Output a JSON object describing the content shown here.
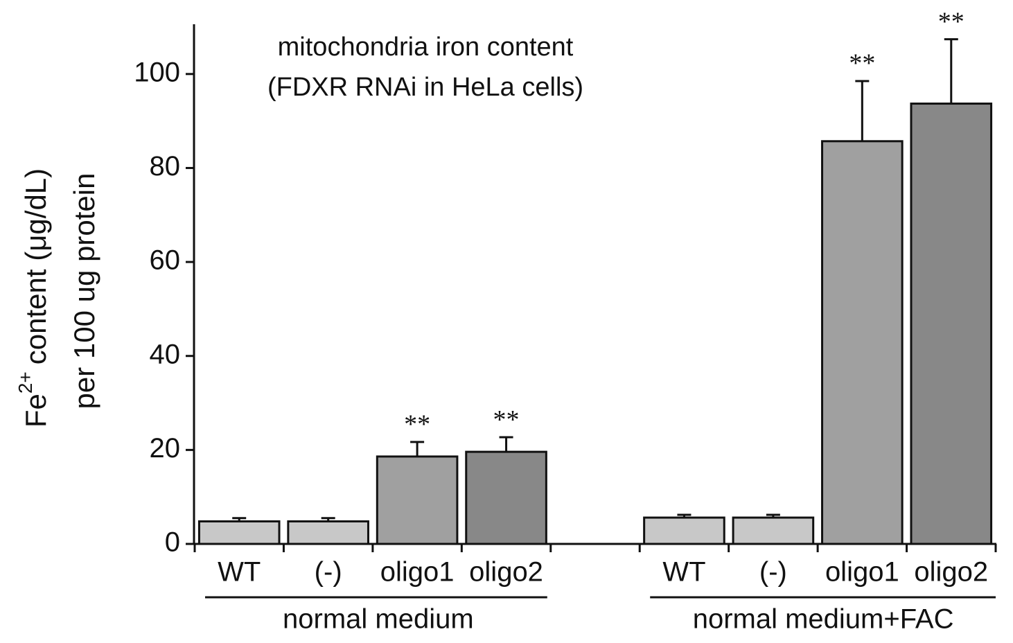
{
  "chart_data": {
    "type": "bar",
    "title": "mitochondria iron content",
    "subtitle": "(FDXR RNAi in HeLa cells)",
    "ylabel_base": "Fe",
    "ylabel_sup": "2+",
    "ylabel_rest": "content (μg/dL)",
    "ylabel_line2": "per 100 ug protein",
    "ylim": [
      0,
      110
    ],
    "yticks": [
      0,
      20,
      40,
      60,
      80,
      100
    ],
    "groups": [
      {
        "name": "normal medium",
        "categories": [
          "WT",
          "(-)",
          "oligo1",
          "oligo2"
        ],
        "values": [
          4.8,
          4.8,
          18.6,
          19.6
        ],
        "errors": [
          0.7,
          0.7,
          3.1,
          3.1
        ],
        "colors": [
          "#c8c8c8",
          "#c8c8c8",
          "#a0a0a0",
          "#888888"
        ],
        "significance": [
          null,
          null,
          "**",
          "**"
        ]
      },
      {
        "name": "normal medium+FAC",
        "categories": [
          "WT",
          "(-)",
          "oligo1",
          "oligo2"
        ],
        "values": [
          5.6,
          5.6,
          85.7,
          93.7
        ],
        "errors": [
          0.6,
          0.6,
          12.8,
          13.7
        ],
        "colors": [
          "#c8c8c8",
          "#c8c8c8",
          "#a0a0a0",
          "#888888"
        ],
        "significance": [
          null,
          null,
          "**",
          "**"
        ]
      }
    ]
  }
}
